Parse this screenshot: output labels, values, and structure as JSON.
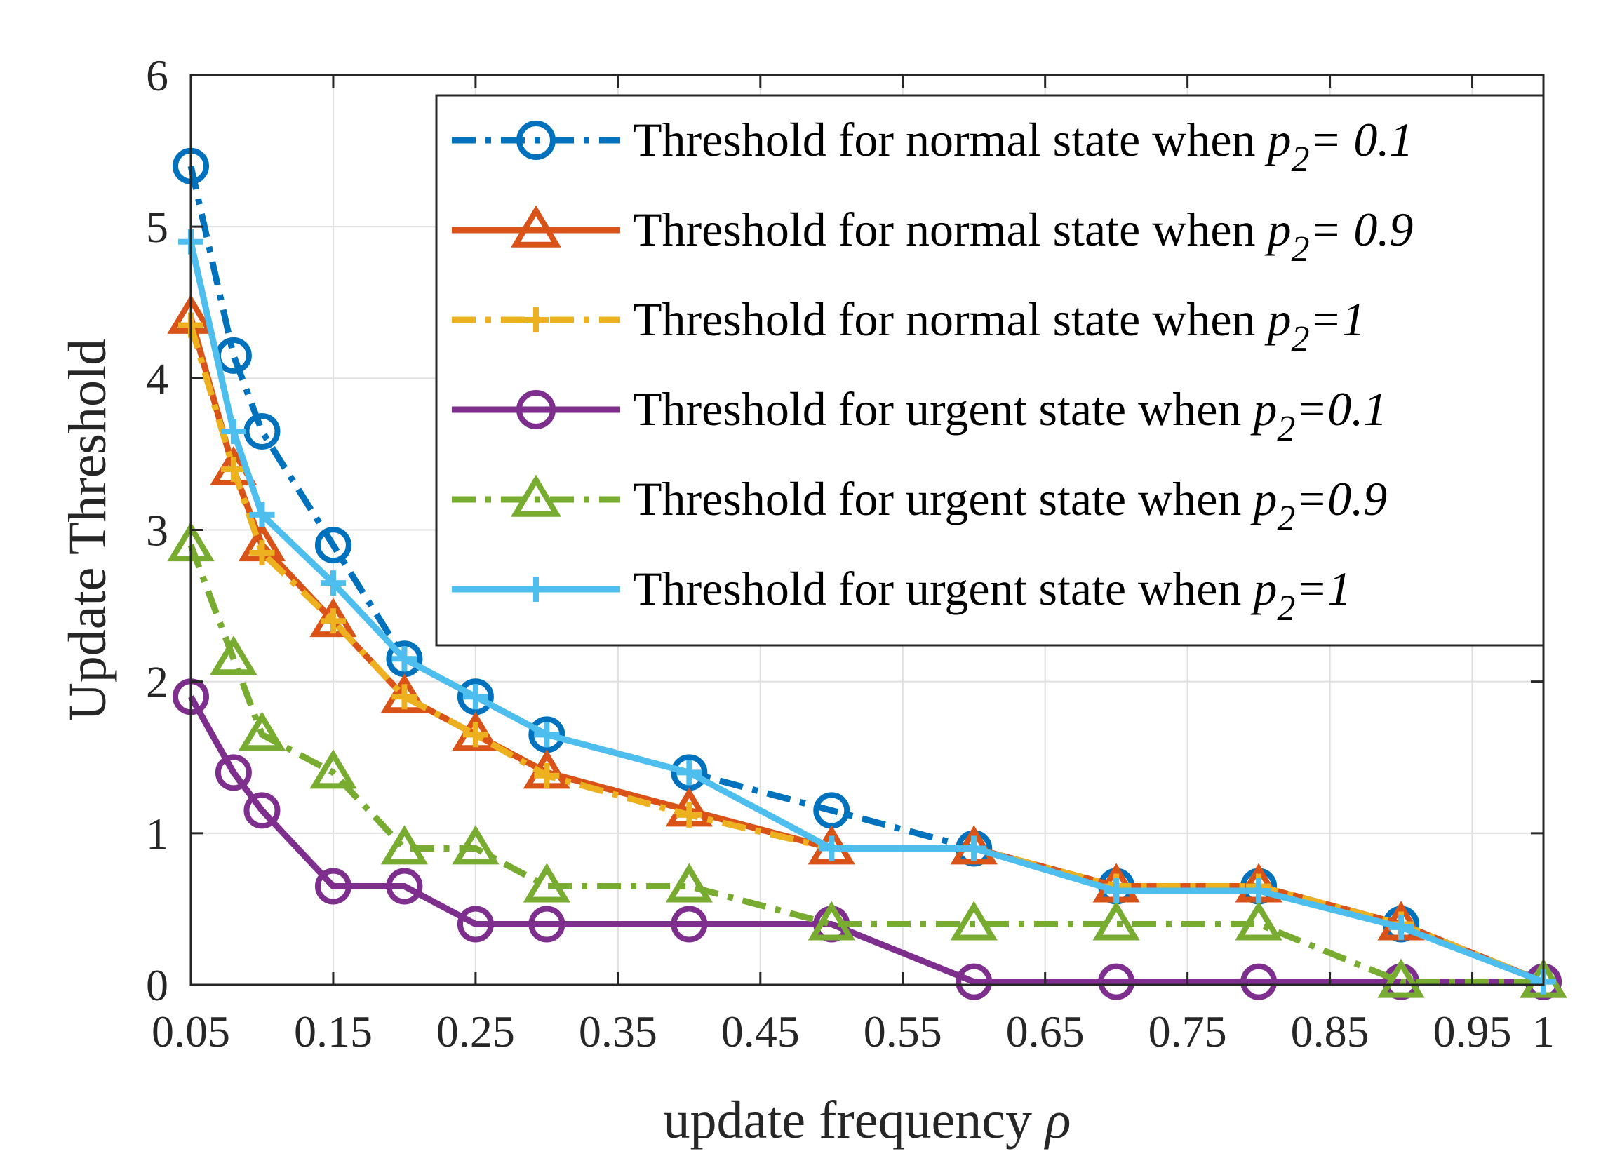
{
  "chart_data": {
    "type": "line",
    "xlabel": "update frequency",
    "xlabel_symbol": "ρ",
    "ylabel": "Update Threshold",
    "xlim": [
      0.05,
      1
    ],
    "ylim": [
      0,
      6
    ],
    "xticks": [
      "0.05",
      "0.15",
      "0.25",
      "0.35",
      "0.45",
      "0.55",
      "0.65",
      "0.75",
      "0.85",
      "0.95",
      "1"
    ],
    "xtick_values": [
      0.05,
      0.15,
      0.25,
      0.35,
      0.45,
      0.55,
      0.65,
      0.75,
      0.85,
      0.95,
      1
    ],
    "yticks": [
      "0",
      "1",
      "2",
      "3",
      "4",
      "5",
      "6"
    ],
    "ytick_values": [
      0,
      1,
      2,
      3,
      4,
      5,
      6
    ],
    "grid": true,
    "legend_position": "top-right",
    "series": [
      {
        "name": "Threshold for normal state when",
        "param": "p",
        "sub": "2",
        "value": "= 0.1",
        "color": "#0072BD",
        "dash": "dashdot",
        "marker": "circle",
        "x": [
          0.05,
          0.08,
          0.1,
          0.15,
          0.2,
          0.25,
          0.3,
          0.4,
          0.5,
          0.6,
          0.7,
          0.8,
          0.9,
          1
        ],
        "y": [
          5.4,
          4.15,
          3.65,
          2.9,
          2.15,
          1.9,
          1.65,
          1.4,
          1.15,
          0.9,
          0.65,
          0.65,
          0.4,
          0.02
        ]
      },
      {
        "name": "Threshold for normal state when",
        "param": "p",
        "sub": "2",
        "value": "= 0.9",
        "color": "#D95319",
        "dash": "solid",
        "marker": "triangle",
        "x": [
          0.05,
          0.08,
          0.1,
          0.15,
          0.2,
          0.25,
          0.3,
          0.4,
          0.5,
          0.6,
          0.7,
          0.8,
          0.9,
          1
        ],
        "y": [
          4.4,
          3.4,
          2.9,
          2.4,
          1.9,
          1.65,
          1.4,
          1.15,
          0.9,
          0.9,
          0.65,
          0.65,
          0.4,
          0.02
        ]
      },
      {
        "name": "Threshold for normal state when",
        "param": "p",
        "sub": "2",
        "value": "=1",
        "color": "#EDB120",
        "dash": "dashdot",
        "marker": "plus",
        "x": [
          0.05,
          0.08,
          0.1,
          0.15,
          0.2,
          0.25,
          0.3,
          0.4,
          0.5,
          0.6,
          0.7,
          0.8,
          0.9,
          1
        ],
        "y": [
          4.35,
          3.4,
          2.85,
          2.4,
          1.9,
          1.65,
          1.38,
          1.12,
          0.9,
          0.9,
          0.65,
          0.65,
          0.4,
          0.02
        ]
      },
      {
        "name": "Threshold for urgent state when",
        "param": "p",
        "sub": "2",
        "value": "=0.1",
        "color": "#7E2F8E",
        "dash": "solid",
        "marker": "circle",
        "x": [
          0.05,
          0.08,
          0.1,
          0.15,
          0.2,
          0.25,
          0.3,
          0.4,
          0.5,
          0.6,
          0.7,
          0.8,
          0.9,
          1
        ],
        "y": [
          1.9,
          1.4,
          1.15,
          0.65,
          0.65,
          0.4,
          0.4,
          0.4,
          0.4,
          0.02,
          0.02,
          0.02,
          0.02,
          0.02
        ]
      },
      {
        "name": "Threshold for urgent state when",
        "param": "p",
        "sub": "2",
        "value": "=0.9",
        "color": "#77AC30",
        "dash": "dashdot",
        "marker": "triangle",
        "x": [
          0.05,
          0.08,
          0.1,
          0.15,
          0.2,
          0.25,
          0.3,
          0.4,
          0.5,
          0.6,
          0.7,
          0.8,
          0.9,
          1
        ],
        "y": [
          2.9,
          2.15,
          1.65,
          1.4,
          0.9,
          0.9,
          0.65,
          0.65,
          0.4,
          0.4,
          0.4,
          0.4,
          0.02,
          0.02
        ]
      },
      {
        "name": "Threshold for urgent state when",
        "param": "p",
        "sub": "2",
        "value": "=1",
        "color": "#4DBEEE",
        "dash": "solid",
        "marker": "plus",
        "x": [
          0.05,
          0.08,
          0.1,
          0.15,
          0.2,
          0.25,
          0.3,
          0.4,
          0.5,
          0.6,
          0.7,
          0.8,
          0.9,
          1
        ],
        "y": [
          4.9,
          3.65,
          3.1,
          2.65,
          2.15,
          1.9,
          1.65,
          1.4,
          0.9,
          0.9,
          0.62,
          0.62,
          0.38,
          0.02
        ]
      }
    ]
  }
}
